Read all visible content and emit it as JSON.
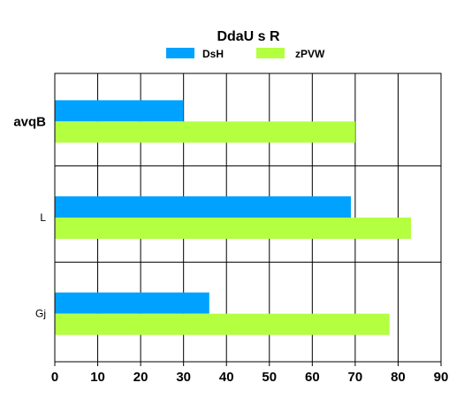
{
  "chart_data": {
    "type": "bar",
    "orientation": "horizontal",
    "title": "DdaU s R",
    "categories": [
      "avqB",
      "L",
      "Gj"
    ],
    "series": [
      {
        "name": "DsH",
        "color": "#00a2ff",
        "values": [
          30,
          69,
          36
        ]
      },
      {
        "name": "zPVW",
        "color": "#b3ff40",
        "values": [
          70,
          83,
          78
        ]
      }
    ],
    "xlim": [
      0,
      90
    ],
    "xticks": [
      0,
      10,
      20,
      30,
      40,
      50,
      60,
      70,
      80,
      90
    ],
    "grid": true,
    "legend_position": "top"
  }
}
